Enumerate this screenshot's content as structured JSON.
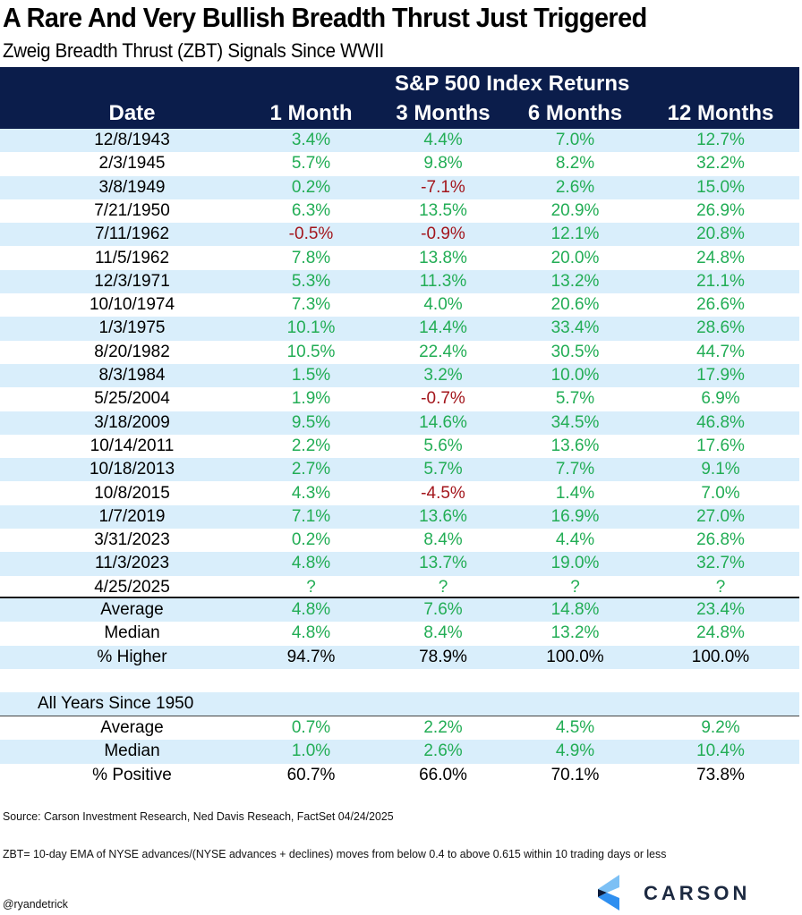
{
  "header": {
    "title": "A Rare And Very Bullish Breadth Thrust Just Triggered",
    "subtitle": "Zweig Breadth Thrust (ZBT) Signals Since WWII"
  },
  "table": {
    "group_header": "S&P 500 Index Returns",
    "columns": [
      "Date",
      "1 Month",
      "3 Months",
      "6 Months",
      "12 Months"
    ],
    "rows": [
      {
        "date": "12/8/1943",
        "values": [
          "3.4%",
          "4.4%",
          "7.0%",
          "12.7%"
        ]
      },
      {
        "date": "2/3/1945",
        "values": [
          "5.7%",
          "9.8%",
          "8.2%",
          "32.2%"
        ]
      },
      {
        "date": "3/8/1949",
        "values": [
          "0.2%",
          "-7.1%",
          "2.6%",
          "15.0%"
        ]
      },
      {
        "date": "7/21/1950",
        "values": [
          "6.3%",
          "13.5%",
          "20.9%",
          "26.9%"
        ]
      },
      {
        "date": "7/11/1962",
        "values": [
          "-0.5%",
          "-0.9%",
          "12.1%",
          "20.8%"
        ]
      },
      {
        "date": "11/5/1962",
        "values": [
          "7.8%",
          "13.8%",
          "20.0%",
          "24.8%"
        ]
      },
      {
        "date": "12/3/1971",
        "values": [
          "5.3%",
          "11.3%",
          "13.2%",
          "21.1%"
        ]
      },
      {
        "date": "10/10/1974",
        "values": [
          "7.3%",
          "4.0%",
          "20.6%",
          "26.6%"
        ]
      },
      {
        "date": "1/3/1975",
        "values": [
          "10.1%",
          "14.4%",
          "33.4%",
          "28.6%"
        ]
      },
      {
        "date": "8/20/1982",
        "values": [
          "10.5%",
          "22.4%",
          "30.5%",
          "44.7%"
        ]
      },
      {
        "date": "8/3/1984",
        "values": [
          "1.5%",
          "3.2%",
          "10.0%",
          "17.9%"
        ]
      },
      {
        "date": "5/25/2004",
        "values": [
          "1.9%",
          "-0.7%",
          "5.7%",
          "6.9%"
        ]
      },
      {
        "date": "3/18/2009",
        "values": [
          "9.5%",
          "14.6%",
          "34.5%",
          "46.8%"
        ]
      },
      {
        "date": "10/14/2011",
        "values": [
          "2.2%",
          "5.6%",
          "13.6%",
          "17.6%"
        ]
      },
      {
        "date": "10/18/2013",
        "values": [
          "2.7%",
          "5.7%",
          "7.7%",
          "9.1%"
        ]
      },
      {
        "date": "10/8/2015",
        "values": [
          "4.3%",
          "-4.5%",
          "1.4%",
          "7.0%"
        ]
      },
      {
        "date": "1/7/2019",
        "values": [
          "7.1%",
          "13.6%",
          "16.9%",
          "27.0%"
        ]
      },
      {
        "date": "3/31/2023",
        "values": [
          "0.2%",
          "8.4%",
          "4.4%",
          "26.8%"
        ]
      },
      {
        "date": "11/3/2023",
        "values": [
          "4.8%",
          "13.7%",
          "19.0%",
          "32.7%"
        ]
      },
      {
        "date": "4/25/2025",
        "values": [
          "?",
          "?",
          "?",
          "?"
        ]
      }
    ],
    "summary": [
      {
        "label": "Average",
        "values": [
          "4.8%",
          "7.6%",
          "14.8%",
          "23.4%"
        ],
        "style": "pos"
      },
      {
        "label": "Median",
        "values": [
          "4.8%",
          "8.4%",
          "13.2%",
          "24.8%"
        ],
        "style": "pos"
      },
      {
        "label": "% Higher",
        "values": [
          "94.7%",
          "78.9%",
          "100.0%",
          "100.0%"
        ],
        "style": "blk"
      }
    ],
    "all_years": {
      "label": "All Years Since 1950",
      "rows": [
        {
          "label": "Average",
          "values": [
            "0.7%",
            "2.2%",
            "4.5%",
            "9.2%"
          ],
          "style": "pos"
        },
        {
          "label": "Median",
          "values": [
            "1.0%",
            "2.6%",
            "4.9%",
            "10.4%"
          ],
          "style": "pos"
        },
        {
          "label": "% Positive",
          "values": [
            "60.7%",
            "66.0%",
            "70.1%",
            "73.8%"
          ],
          "style": "blk"
        }
      ]
    }
  },
  "footer": {
    "source": "Source: Carson Investment Research, Ned Davis Reseach, FactSet 04/24/2025",
    "definition": "ZBT= 10-day EMA of NYSE advances/(NYSE advances + declines) moves from below 0.4 to above 0.615 within 10 trading days or less",
    "handle": "@ryandetrick",
    "logo_text": "CARSON",
    "logo_icon": "carson-chevron-logo"
  },
  "colors": {
    "header_bg": "#0b1d4b",
    "stripe": "#d9eefb",
    "positive": "#22ad55",
    "negative": "#a3161c"
  }
}
